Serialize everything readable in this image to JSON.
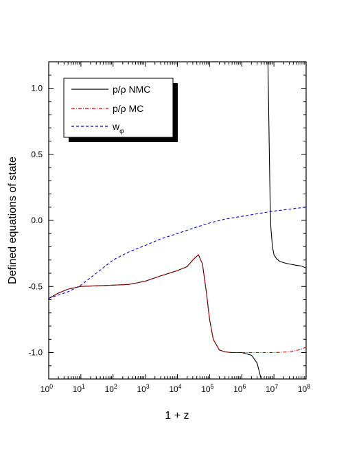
{
  "chart_data": {
    "type": "line",
    "xlabel": "1 + z",
    "ylabel": "Defined equations of state",
    "x_scale": "log",
    "xlim": [
      1,
      100000000
    ],
    "ylim": [
      -1.2,
      1.2
    ],
    "x_ticks": [
      1,
      10,
      100,
      1000,
      10000,
      100000,
      1000000,
      10000000,
      100000000
    ],
    "x_tick_labels": [
      {
        "base": "10",
        "exp": "0"
      },
      {
        "base": "10",
        "exp": "1"
      },
      {
        "base": "10",
        "exp": "2"
      },
      {
        "base": "10",
        "exp": "3"
      },
      {
        "base": "10",
        "exp": "4"
      },
      {
        "base": "10",
        "exp": "5"
      },
      {
        "base": "10",
        "exp": "6"
      },
      {
        "base": "10",
        "exp": "7"
      },
      {
        "base": "10",
        "exp": "8"
      }
    ],
    "y_ticks": [
      -1.0,
      -0.5,
      0.0,
      0.5,
      1.0
    ],
    "y_tick_labels": [
      "-1.0",
      "-0.5",
      "0.0",
      "0.5",
      "1.0"
    ],
    "grid": false,
    "legend_position": "top-left",
    "series": [
      {
        "name": "p/ρ NMC",
        "color": "#000000",
        "style": "solid",
        "segments": [
          {
            "x": [
              1,
              2,
              4,
              10,
              30,
              100,
              300,
              1000,
              3000,
              10000,
              20000,
              30000,
              45000,
              60000,
              80000,
              100000,
              130000,
              200000,
              300000,
              500000,
              1000000,
              2000000,
              3000000,
              4000000
            ],
            "y": [
              -0.59,
              -0.55,
              -0.52,
              -0.5,
              -0.495,
              -0.49,
              -0.485,
              -0.46,
              -0.42,
              -0.38,
              -0.35,
              -0.3,
              -0.26,
              -0.33,
              -0.55,
              -0.75,
              -0.9,
              -0.98,
              -0.995,
              -1.0,
              -1.0,
              -1.02,
              -1.08,
              -1.2
            ]
          },
          {
            "x": [
              6500000,
              6800000,
              7200000,
              7600000,
              8000000,
              9000000,
              10000000,
              12000000,
              15000000,
              20000000,
              30000000,
              50000000,
              70000000,
              100000000
            ],
            "y": [
              1.2,
              0.9,
              0.5,
              0.15,
              -0.05,
              -0.2,
              -0.26,
              -0.29,
              -0.31,
              -0.32,
              -0.33,
              -0.34,
              -0.345,
              -0.36
            ]
          }
        ]
      },
      {
        "name": "p/ρ MC",
        "color": "#cc0000",
        "style": "dash-dot",
        "segments": [
          {
            "x": [
              1,
              2,
              4,
              10,
              30,
              100,
              300,
              1000,
              3000,
              10000,
              20000,
              30000,
              45000,
              60000,
              80000,
              100000,
              130000,
              200000,
              300000,
              500000,
              1000000,
              3000000,
              10000000,
              30000000,
              60000000,
              100000000
            ],
            "y": [
              -0.59,
              -0.55,
              -0.52,
              -0.5,
              -0.495,
              -0.49,
              -0.485,
              -0.46,
              -0.42,
              -0.38,
              -0.35,
              -0.3,
              -0.26,
              -0.33,
              -0.55,
              -0.75,
              -0.9,
              -0.98,
              -0.995,
              -1.0,
              -1.0,
              -1.0,
              -1.0,
              -0.995,
              -0.98,
              -0.96
            ]
          }
        ]
      },
      {
        "name": "w",
        "name_sub": "φ",
        "color": "#0000cc",
        "style": "dashed",
        "segments": [
          {
            "x": [
              1,
              2,
              4,
              10,
              30,
              100,
              300,
              1000,
              3000,
              10000,
              30000,
              100000,
              300000,
              1000000,
              3000000,
              10000000,
              30000000,
              100000000
            ],
            "y": [
              -0.59,
              -0.565,
              -0.54,
              -0.49,
              -0.4,
              -0.3,
              -0.24,
              -0.19,
              -0.14,
              -0.1,
              -0.06,
              -0.02,
              0.01,
              0.03,
              0.05,
              0.07,
              0.085,
              0.1
            ]
          }
        ]
      }
    ]
  }
}
